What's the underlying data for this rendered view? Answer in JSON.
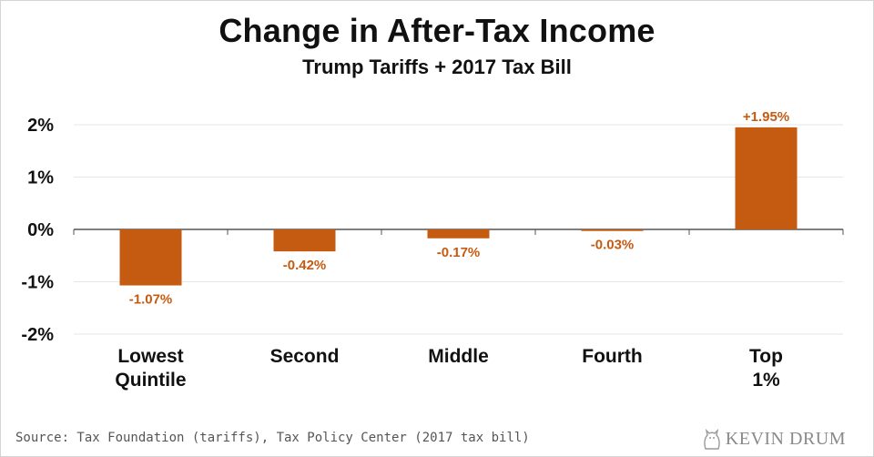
{
  "title": "Change in After-Tax Income",
  "subtitle": "Trump Tariffs + 2017 Tax Bill",
  "source": "Source: Tax Foundation (tariffs), Tax Policy Center (2017 tax bill)",
  "brand": "KEVIN DRUM",
  "colors": {
    "bar": "#c55a11",
    "axis": "#555555",
    "grid": "#e6e6e6",
    "text": "#111111"
  },
  "chart_data": {
    "type": "bar",
    "title": "Change in After-Tax Income",
    "subtitle": "Trump Tariffs + 2017 Tax Bill",
    "categories": [
      [
        "Lowest",
        "Quintile"
      ],
      [
        "Second"
      ],
      [
        "Middle"
      ],
      [
        "Fourth"
      ],
      [
        "Top",
        "1%"
      ]
    ],
    "values": [
      -1.07,
      -0.42,
      -0.17,
      -0.03,
      1.95
    ],
    "data_labels": [
      "-1.07%",
      "-0.42%",
      "-0.17%",
      "-0.03%",
      "+1.95%"
    ],
    "yticks": [
      2,
      1,
      0,
      -1,
      -2
    ],
    "ytick_labels": [
      "2%",
      "1%",
      "0%",
      "-1%",
      "-2%"
    ],
    "ylim": [
      -2,
      2
    ],
    "grid": true
  }
}
